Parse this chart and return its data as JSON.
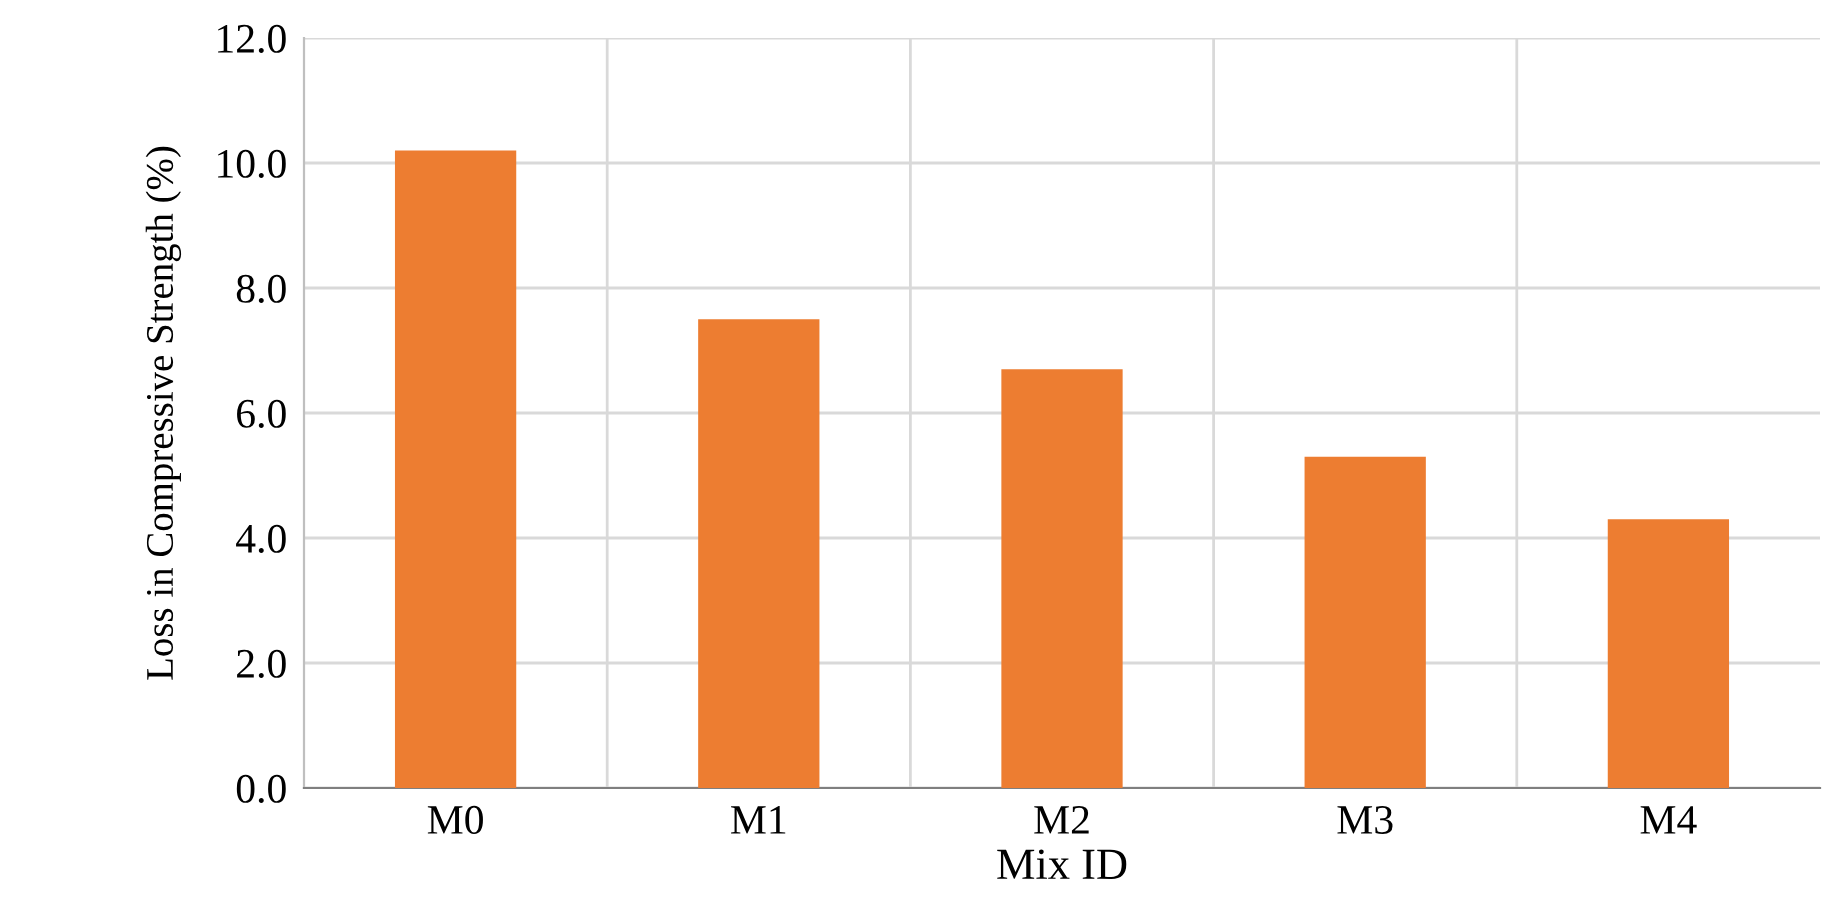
{
  "chart_data": {
    "type": "bar",
    "xlabel": "Mix ID",
    "ylabel": "Loss in Compressive Strength (%)",
    "categories": [
      "M0",
      "M1",
      "M2",
      "M3",
      "M4"
    ],
    "values": [
      10.2,
      7.5,
      6.7,
      5.3,
      4.3
    ],
    "color": "#ed7d31",
    "ylim": [
      0,
      12
    ],
    "yticks": [
      {
        "value": 0,
        "label": "0.0"
      },
      {
        "value": 2,
        "label": "2.0"
      },
      {
        "value": 4,
        "label": "4.0"
      },
      {
        "value": 6,
        "label": "6.0"
      },
      {
        "value": 8,
        "label": "8.0"
      },
      {
        "value": 10,
        "label": "10.0"
      },
      {
        "value": 12,
        "label": "12.0"
      }
    ],
    "grid": true,
    "legend": false
  }
}
